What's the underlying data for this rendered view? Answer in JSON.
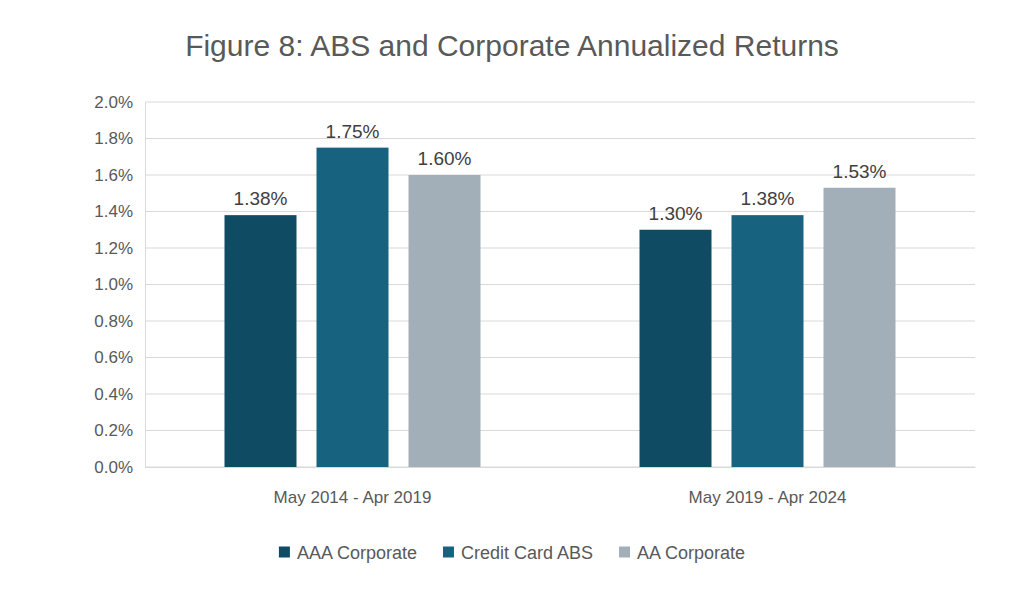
{
  "chart_data": {
    "type": "bar",
    "title": "Figure 8: ABS and Corporate Annualized Returns",
    "categories": [
      "May 2014 - Apr 2019",
      "May 2019 - Apr 2024"
    ],
    "series": [
      {
        "name": "AAA Corporate",
        "color": "#0f4c64",
        "values": [
          1.38,
          1.3
        ],
        "value_labels": [
          "1.38%",
          "1.30%"
        ]
      },
      {
        "name": "Credit Card ABS",
        "color": "#17637f",
        "values": [
          1.75,
          1.38
        ],
        "value_labels": [
          "1.75%",
          "1.38%"
        ]
      },
      {
        "name": "AA Corporate",
        "color": "#a3afb8",
        "values": [
          1.6,
          1.53
        ],
        "value_labels": [
          "1.60%",
          "1.53%"
        ]
      }
    ],
    "ylim": [
      0,
      2.0
    ],
    "yticks": [
      {
        "value": 0,
        "label": "0.0%"
      },
      {
        "value": 0.2,
        "label": "0.2%"
      },
      {
        "value": 0.4,
        "label": "0.4%"
      },
      {
        "value": 0.6,
        "label": "0.6%"
      },
      {
        "value": 0.8,
        "label": "0.8%"
      },
      {
        "value": 1.0,
        "label": "1.0%"
      },
      {
        "value": 1.2,
        "label": "1.2%"
      },
      {
        "value": 1.4,
        "label": "1.4%"
      },
      {
        "value": 1.6,
        "label": "1.6%"
      },
      {
        "value": 1.8,
        "label": "1.8%"
      },
      {
        "value": 2.0,
        "label": "2.0%"
      }
    ],
    "grid": true,
    "legend": "bottom",
    "data_labels": true
  }
}
